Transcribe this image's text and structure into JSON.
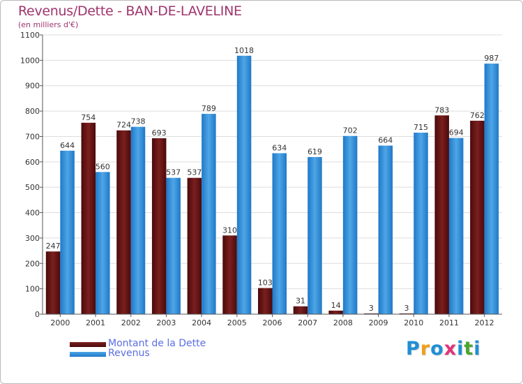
{
  "title": "Revenus/Dette - BAN-DE-LAVELINE",
  "subtitle": "(en milliers d'€)",
  "logo": {
    "letters": [
      "P",
      "r",
      "o",
      "x",
      "i",
      "t",
      "i"
    ],
    "colors": [
      "#1f8fd6",
      "#f29f1b",
      "#1f8fd6",
      "#e0347a",
      "#1f8fd6",
      "#4aa62f",
      "#1f8fd6"
    ]
  },
  "colors": {
    "debt": "#7b1f1f",
    "debt_dark": "#4a0a0a",
    "revenue": "#4ea6e6",
    "revenue_dark": "#1f78c8",
    "title": "#a0346e",
    "legend_text": "#5b6ee1"
  },
  "chart_data": {
    "type": "bar",
    "categories": [
      "2000",
      "2001",
      "2002",
      "2003",
      "2004",
      "2005",
      "2006",
      "2007",
      "2008",
      "2009",
      "2010",
      "2011",
      "2012"
    ],
    "series": [
      {
        "name": "Montant de la Dette",
        "values": [
          247,
          754,
          724,
          693,
          537,
          310,
          103,
          31,
          14,
          3,
          3,
          783,
          762
        ]
      },
      {
        "name": "Revenus",
        "values": [
          644,
          560,
          738,
          537,
          789,
          1018,
          634,
          619,
          702,
          664,
          715,
          694,
          987
        ]
      }
    ],
    "data_labels": [
      [
        "247",
        "754",
        "724",
        "693",
        "537",
        "310",
        "103",
        "31",
        "14",
        "3",
        "3",
        "783",
        "762"
      ],
      [
        "644",
        "560",
        "738",
        "537",
        "789",
        "1018",
        "634",
        "619",
        "702",
        "664",
        "715",
        "694",
        "987"
      ]
    ],
    "yticks": [
      "0",
      "100",
      "200",
      "300",
      "400",
      "500",
      "600",
      "700",
      "800",
      "900",
      "1000",
      "1100"
    ],
    "ylim": [
      0,
      1100
    ],
    "grid": true,
    "legend_position": "bottom-left"
  }
}
